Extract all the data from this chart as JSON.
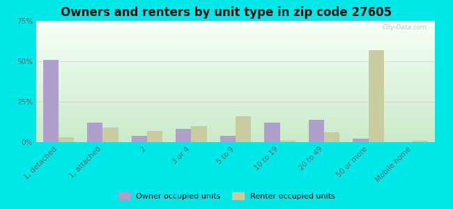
{
  "title": "Owners and renters by unit type in zip code 27605",
  "categories": [
    "1, detached",
    "1, attached",
    "2",
    "3 or 4",
    "5 to 9",
    "10 to 19",
    "20 to 49",
    "50 or more",
    "Mobile home"
  ],
  "owner_values": [
    51,
    12,
    4,
    8,
    4,
    12,
    14,
    2,
    0
  ],
  "renter_values": [
    3,
    9,
    7,
    10,
    16,
    1,
    6,
    57,
    1
  ],
  "owner_color": "#b09fcc",
  "renter_color": "#c8cc9f",
  "outer_bg": "#00e8e8",
  "ylim": [
    0,
    75
  ],
  "yticks": [
    0,
    25,
    50,
    75
  ],
  "title_fontsize": 12,
  "tick_fontsize": 7.5,
  "legend_labels": [
    "Owner occupied units",
    "Renter occupied units"
  ],
  "watermark": "City-Data.com"
}
